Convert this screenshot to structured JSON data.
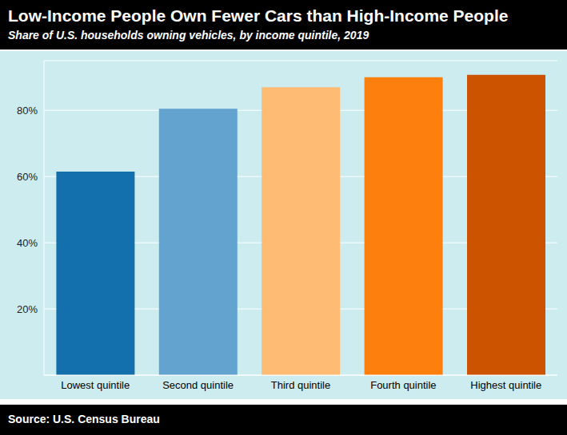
{
  "chart_data": {
    "type": "bar",
    "title": "Low-Income People Own Fewer Cars than High-Income People",
    "subtitle": "Share of U.S. households owning vehicles, by income quintile, 2019",
    "source": "Source: U.S. Census Bureau",
    "categories": [
      "Lowest quintile",
      "Second quintile",
      "Third quintile",
      "Fourth quintile",
      "Highest quintile"
    ],
    "values": [
      61.5,
      80.5,
      87,
      90,
      90.7
    ],
    "colors": [
      "#1470ad",
      "#62a3cf",
      "#fdbb74",
      "#fd7f0e",
      "#cc5300"
    ],
    "ylim": [
      0,
      95
    ],
    "yticks": [
      {
        "value": 20,
        "label": "20%"
      },
      {
        "value": 40,
        "label": "40%"
      },
      {
        "value": 60,
        "label": "60%"
      },
      {
        "value": 80,
        "label": "80%"
      }
    ],
    "grid": true
  }
}
